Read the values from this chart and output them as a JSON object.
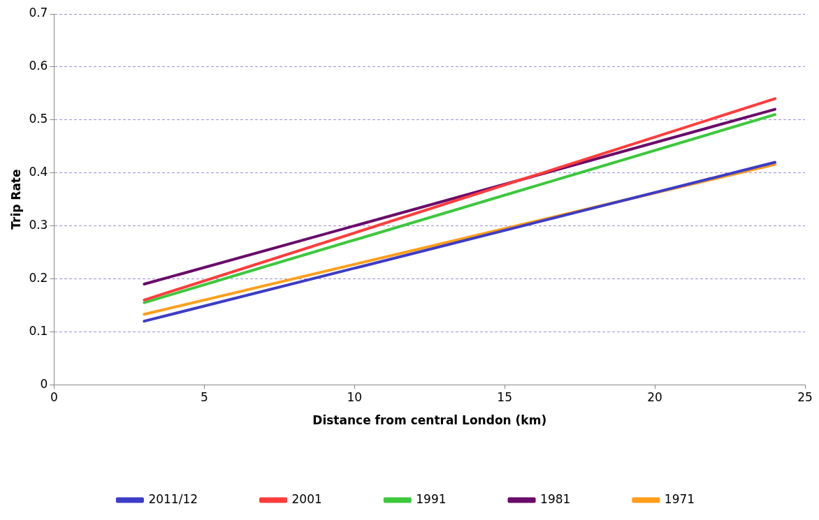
{
  "chart_data": {
    "type": "line",
    "xlabel": "Distance from central London (km)",
    "ylabel": "Trip Rate",
    "xlim": [
      0,
      25
    ],
    "xticks": [
      0,
      5,
      10,
      15,
      20,
      25
    ],
    "ylim": [
      0,
      0.7
    ],
    "yticks": [
      0,
      0.1,
      0.2,
      0.3,
      0.4,
      0.5,
      0.6,
      0.7
    ],
    "x": [
      3,
      24
    ],
    "grid": "y",
    "legend": "bottom",
    "marker": "none",
    "line_style": "solid",
    "series": [
      {
        "name": "2011/12",
        "color": "#3c3cc8",
        "values": [
          0.12,
          0.42
        ]
      },
      {
        "name": "2001",
        "color": "#ff3c3c",
        "values": [
          0.16,
          0.54
        ]
      },
      {
        "name": "1991",
        "color": "#3cc83c",
        "values": [
          0.155,
          0.51
        ]
      },
      {
        "name": "1981",
        "color": "#6a0a6a",
        "values": [
          0.19,
          0.52
        ]
      },
      {
        "name": "1971",
        "color": "#ff9e1a",
        "values": [
          0.133,
          0.416
        ]
      }
    ]
  }
}
